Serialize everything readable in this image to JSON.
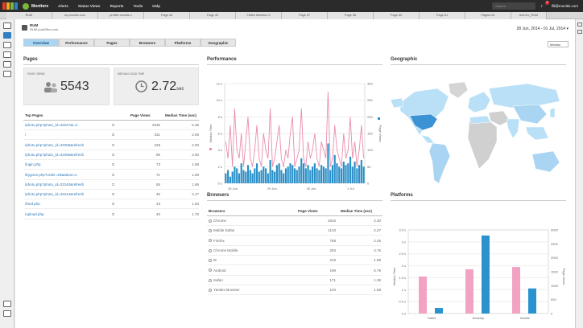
{
  "topbar": {
    "brand": "Monitors",
    "menu": [
      "Alerts",
      "Status Views",
      "Reports",
      "Tools",
      "Help"
    ],
    "search_placeholder": "Search",
    "notif_count": "7",
    "user": "fill@monitis.com"
  },
  "tabs": [
    "RUM",
    "my.monitis.com",
    "profiler.monitis.c",
    "Page 46",
    "Page 49",
    "Failed Monitors 5",
    "Page 57",
    "Page 58",
    "Page 60",
    "Page 61",
    "Página 54",
    "test.rev_RUM",
    "Página 50",
    "RUM post25tm",
    "Page 62"
  ],
  "header": {
    "title": "RUM",
    "subtitle": "RUM post25tm.com",
    "date_range": "28 Jun, 2014 - 01 Jul, 2014",
    "metric": "Median"
  },
  "subtabs": [
    "Overview",
    "Performance",
    "Pages",
    "Browsers",
    "Platforms",
    "Geographic"
  ],
  "sections": {
    "pages": "Pages",
    "performance": "Performance",
    "geographic": "Geographic",
    "browsers": "Browsers",
    "platforms": "Platforms"
  },
  "stats": {
    "views_label": "PAGE VIEWS",
    "views_value": "5543",
    "load_label": "MEDIAN LOAD TIME",
    "load_value": "2.72",
    "load_unit": "sec"
  },
  "top_pages": {
    "headers": [
      "Top Pages",
      "Page Views",
      "Median Time (sec)"
    ],
    "rows": [
      [
        "/photo.php?photo_id=32227&i=4",
        "2046",
        "5.35"
      ],
      [
        "/",
        "331",
        "2.05"
      ],
      [
        "/photo.php?photo_id=32258&refresh",
        "229",
        "2.50"
      ],
      [
        "/photo.php?photo_id=32256&refresh",
        "85",
        "2.50"
      ],
      [
        "/login.php",
        "73",
        "1.69"
      ],
      [
        "/bygone.php?order=25&aiture=1",
        "71",
        "1.69"
      ],
      [
        "/photo.php?photo_id=32240&refresh",
        "55",
        "1.66"
      ],
      [
        "/photo.php?photo_id=32244&refresh",
        "46",
        "2.47"
      ],
      [
        "/feed.php",
        "43",
        "1.84"
      ],
      [
        "/upload.php",
        "40",
        "1.70"
      ]
    ]
  },
  "browsers_table": {
    "headers": [
      "Browsers",
      "Page Views",
      "Median Time (sec)"
    ],
    "rows": [
      [
        "Chrome",
        "2516",
        "2.30"
      ],
      [
        "Mobile Safari",
        "1123",
        "2.27"
      ],
      [
        "Firefox",
        "758",
        "2.45"
      ],
      [
        "Chrome Mobile",
        "253",
        "4.76"
      ],
      [
        "IE",
        "219",
        "1.99"
      ],
      [
        "Android",
        "199",
        "5.79"
      ],
      [
        "Safari",
        "171",
        "1.38"
      ],
      [
        "Yandex Browser",
        "134",
        "1.68"
      ]
    ]
  },
  "chart_data": [
    {
      "type": "line",
      "name": "Performance",
      "y_left_ticks": [
        "12 s",
        "10 s",
        "8 s",
        "6 s",
        "4 s",
        "2 s",
        "0 s"
      ],
      "y_right_ticks": [
        "300",
        "250",
        "200",
        "150",
        "100",
        "50",
        "0"
      ],
      "x_ticks": [
        "28 Jun",
        "29 Jun",
        "30 Jun",
        "1 Jul"
      ],
      "ylabel_left": "Median Time",
      "ylabel_right": "Page Views",
      "colors": {
        "line": "#e88db0",
        "bars": "#2a8fc7"
      },
      "median_time": [
        5,
        3,
        7,
        2,
        9,
        4,
        3,
        6,
        2,
        5,
        8,
        3,
        2,
        4,
        7,
        3,
        2,
        6,
        4,
        3,
        9,
        2,
        3,
        5,
        7,
        3,
        2,
        4,
        3,
        6,
        8,
        2,
        3,
        4,
        9,
        3,
        2,
        5,
        3,
        4,
        6,
        3,
        2,
        5,
        4,
        3,
        11,
        2,
        3,
        7,
        4,
        3,
        2,
        6,
        3,
        4,
        8,
        3,
        5,
        2,
        4,
        7,
        3
      ],
      "page_views": [
        30,
        40,
        20,
        35,
        50,
        45,
        30,
        60,
        40,
        35,
        55,
        40,
        30,
        45,
        60,
        35,
        40,
        50,
        45,
        30,
        70,
        40,
        35,
        55,
        60,
        40,
        30,
        45,
        50,
        60,
        55,
        45,
        40,
        50,
        75,
        60,
        45,
        55,
        40,
        50,
        60,
        45,
        40,
        55,
        50,
        45,
        120,
        40,
        55,
        85,
        60,
        50,
        45,
        65,
        55,
        60,
        80,
        50,
        65,
        45,
        55,
        70,
        50
      ]
    },
    {
      "type": "bar",
      "name": "Platforms",
      "categories": [
        "Tablet",
        "Desktop",
        "Mobile"
      ],
      "series": [
        {
          "name": "Median Time",
          "values": [
            1.55,
            1.85,
            1.95
          ],
          "color": "#f2a3c3"
        },
        {
          "name": "Page Views",
          "values": [
            200,
            2800,
            900
          ],
          "color": "#2a93cf"
        }
      ],
      "y_left_ticks": [
        "3.5 s",
        "3 s",
        "2.5 s",
        "2 s",
        "1.5 s",
        "1 s",
        "0.5 s",
        "0 s"
      ],
      "y_right_ticks": [
        "3000",
        "2500",
        "2000",
        "1500",
        "1000",
        "500",
        "0"
      ]
    }
  ]
}
